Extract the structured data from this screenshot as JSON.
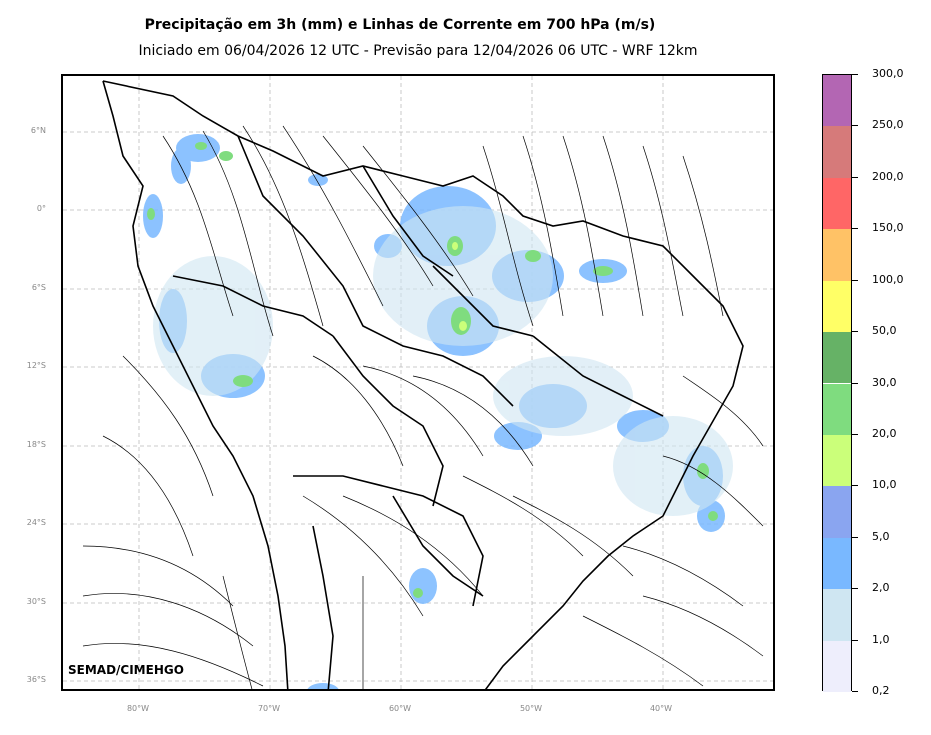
{
  "title": "Precipitação em 3h (mm) e Linhas de Corrente em 700 hPa (m/s)",
  "subtitle": "Iniciado em 06/04/2026 12 UTC - Previsão para 12/04/2026 06 UTC - WRF 12km",
  "credit": "SEMAD/CIMEHGO",
  "latitude_labels": [
    "6°N",
    "0°",
    "6°S",
    "12°S",
    "18°S",
    "24°S",
    "30°S",
    "36°S"
  ],
  "longitude_labels": [
    "80°W",
    "70°W",
    "60°W",
    "50°W",
    "40°W"
  ],
  "colorbar": {
    "labels": [
      "0,2",
      "1,0",
      "2,0",
      "5,0",
      "10,0",
      "20,0",
      "30,0",
      "50,0",
      "100,0",
      "150,0",
      "200,0",
      "250,0",
      "300,0"
    ],
    "colors": [
      "#eeeefc",
      "#cfe6f2",
      "#79b8ff",
      "#8aa5f0",
      "#cbff7a",
      "#7fdc7f",
      "#66b266",
      "#ffff66",
      "#ffc266",
      "#ff6666",
      "#d67a7a",
      "#b366b3"
    ]
  }
}
